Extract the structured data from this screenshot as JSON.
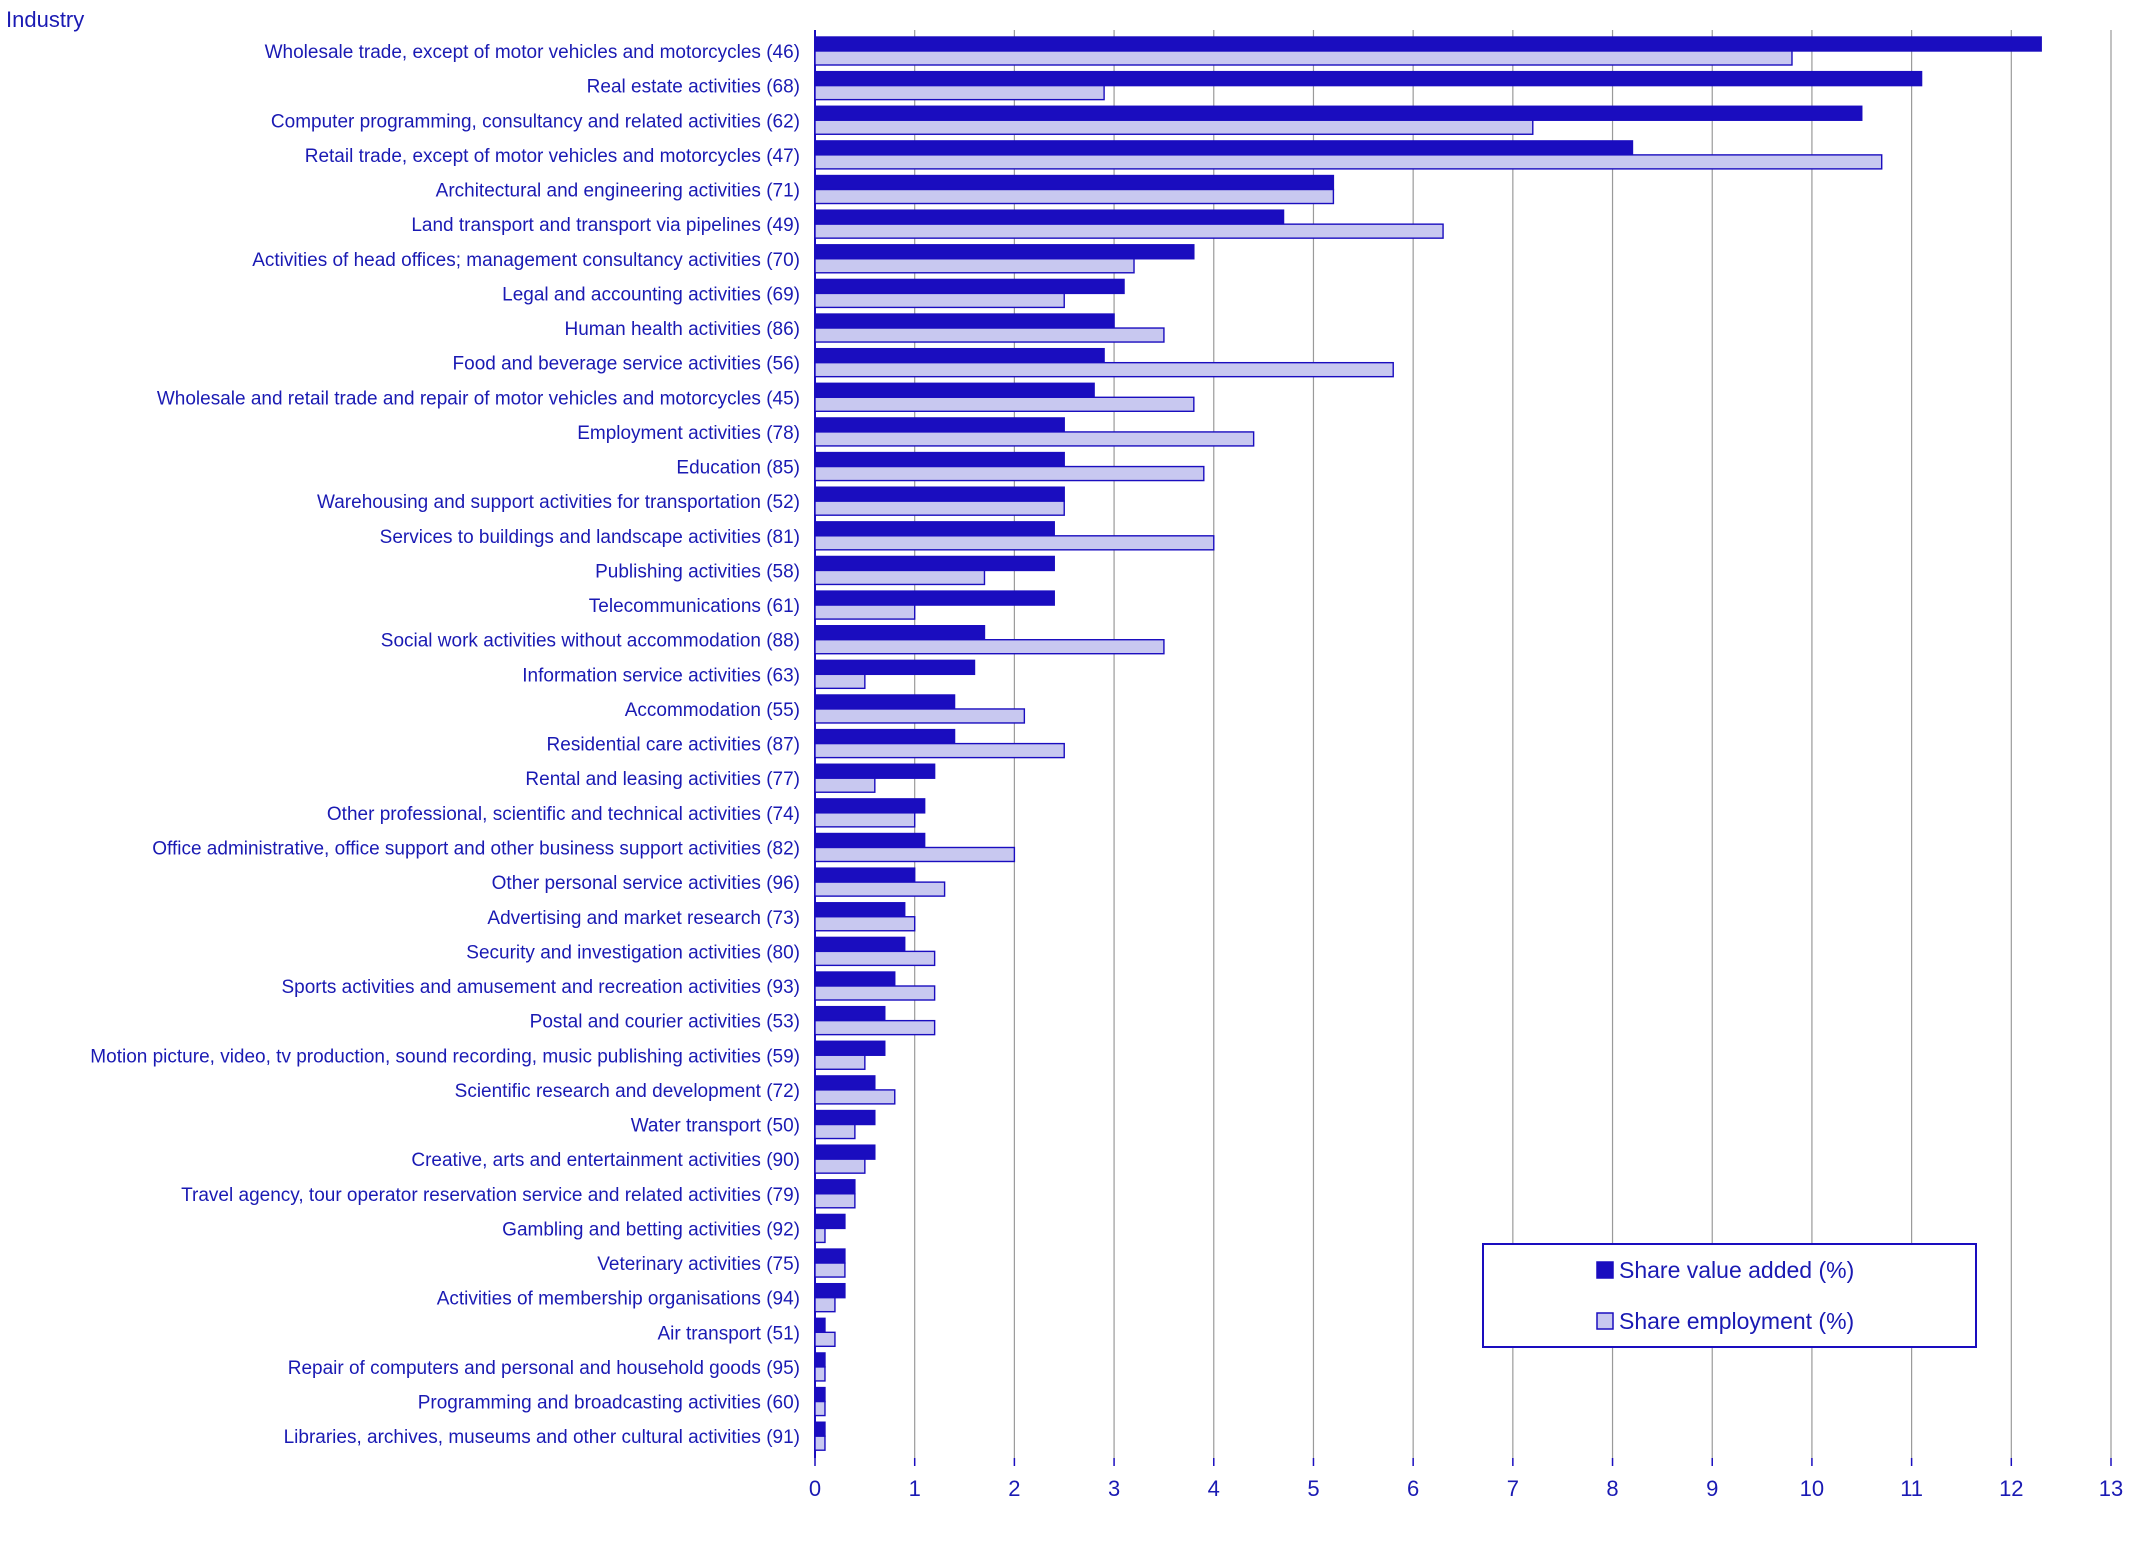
{
  "chart_data": {
    "type": "bar",
    "orientation": "horizontal",
    "title": "",
    "ylabel": "Industry",
    "xlabel": "",
    "xlim": [
      0,
      13
    ],
    "xticks": [
      0,
      1,
      2,
      3,
      4,
      5,
      6,
      7,
      8,
      9,
      10,
      11,
      12,
      13
    ],
    "grid": "vertical",
    "legend_position": "bottom-right",
    "colors": {
      "value_added": "#1a0dbf",
      "employment": "#c8c8f0",
      "text": "#1a1ab3",
      "grid": "#9a9a9a"
    },
    "categories": [
      "Wholesale trade, except of motor vehicles and motorcycles (46)",
      "Real estate activities (68)",
      "Computer programming, consultancy and related activities (62)",
      "Retail trade, except of motor vehicles and motorcycles (47)",
      "Architectural and engineering activities (71)",
      "Land transport and transport via pipelines (49)",
      "Activities of head offices; management consultancy activities (70)",
      "Legal and accounting activities (69)",
      "Human health activities (86)",
      "Food and beverage service activities (56)",
      "Wholesale and retail trade and repair of motor vehicles and motorcycles (45)",
      "Employment activities (78)",
      "Education (85)",
      "Warehousing and support activities for transportation (52)",
      "Services to buildings and landscape activities (81)",
      "Publishing activities (58)",
      "Telecommunications (61)",
      "Social work activities without accommodation (88)",
      "Information service activities (63)",
      "Accommodation (55)",
      "Residential care activities (87)",
      "Rental and leasing activities (77)",
      "Other professional, scientific and technical activities (74)",
      "Office administrative, office support and other business support activities (82)",
      "Other personal service activities (96)",
      "Advertising and market research (73)",
      "Security and investigation activities (80)",
      "Sports activities and amusement and recreation activities (93)",
      "Postal and courier activities (53)",
      "Motion picture, video, tv production, sound recording, music publishing activities (59)",
      "Scientific research and development (72)",
      "Water transport (50)",
      "Creative, arts and entertainment activities (90)",
      "Travel agency, tour operator reservation service and related activities (79)",
      "Gambling and betting activities (92)",
      "Veterinary activities (75)",
      "Activities of membership organisations (94)",
      "Air transport (51)",
      "Repair of computers and personal and household goods (95)",
      "Programming and broadcasting activities (60)",
      "Libraries, archives, museums and other cultural activities (91)"
    ],
    "series": [
      {
        "name": "Share value added (%)",
        "values": [
          12.3,
          11.1,
          10.5,
          8.2,
          5.2,
          4.7,
          3.8,
          3.1,
          3.0,
          2.9,
          2.8,
          2.5,
          2.5,
          2.5,
          2.4,
          2.4,
          2.4,
          1.7,
          1.6,
          1.4,
          1.4,
          1.2,
          1.1,
          1.1,
          1.0,
          0.9,
          0.9,
          0.8,
          0.7,
          0.7,
          0.6,
          0.6,
          0.6,
          0.4,
          0.3,
          0.3,
          0.3,
          0.1,
          0.1,
          0.1,
          0.1
        ]
      },
      {
        "name": "Share employment (%)",
        "values": [
          9.8,
          2.9,
          7.2,
          10.7,
          5.2,
          6.3,
          3.2,
          2.5,
          3.5,
          5.8,
          3.8,
          4.4,
          3.9,
          2.5,
          4.0,
          1.7,
          1.0,
          3.5,
          0.5,
          2.1,
          2.5,
          0.6,
          1.0,
          2.0,
          1.3,
          1.0,
          1.2,
          1.2,
          1.2,
          0.5,
          0.8,
          0.4,
          0.5,
          0.4,
          0.1,
          0.3,
          0.2,
          0.2,
          0.1,
          0.1,
          0.1
        ]
      }
    ]
  }
}
